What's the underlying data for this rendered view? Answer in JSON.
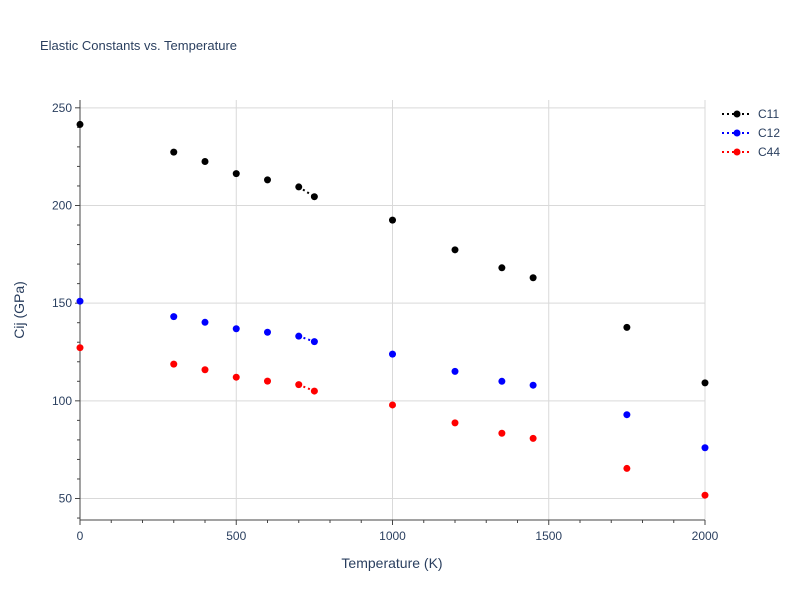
{
  "chart_data": {
    "type": "scatter",
    "title": "Elastic Constants vs. Temperature",
    "xlabel": "Temperature (K)",
    "ylabel": "Cij (GPa)",
    "xlim": [
      0,
      2000
    ],
    "ylim": [
      39,
      254
    ],
    "xticks": [
      0,
      500,
      1000,
      1500,
      2000
    ],
    "yticks": [
      50,
      100,
      150,
      200,
      250
    ],
    "xtick_labels": [
      "0",
      "500",
      "1000",
      "1500",
      "2000"
    ],
    "ytick_labels": [
      "50",
      "100",
      "150",
      "200",
      "250"
    ],
    "grid": true,
    "legend": "top-right",
    "series": [
      {
        "name": "C11",
        "color": "#000000",
        "x": [
          0,
          300,
          400,
          500,
          600,
          700,
          750,
          1000,
          1200,
          1350,
          1450,
          1750,
          2000
        ],
        "y": [
          241.5,
          227.3,
          222.5,
          216.3,
          213.1,
          209.5,
          204.5,
          192.5,
          177.3,
          168.1,
          163.0,
          137.6,
          109.2
        ],
        "segments": [
          [
            5,
            6
          ]
        ]
      },
      {
        "name": "C12",
        "color": "#0000ff",
        "x": [
          0,
          300,
          400,
          500,
          600,
          700,
          750,
          1000,
          1200,
          1350,
          1450,
          1750,
          2000
        ],
        "y": [
          151.0,
          143.1,
          140.2,
          136.9,
          135.1,
          133.1,
          130.3,
          123.9,
          115.1,
          110.0,
          108.0,
          92.9,
          76.0
        ],
        "segments": [
          [
            5,
            6
          ]
        ]
      },
      {
        "name": "C44",
        "color": "#ff0000",
        "x": [
          0,
          300,
          400,
          500,
          600,
          700,
          750,
          1000,
          1200,
          1350,
          1450,
          1750,
          2000
        ],
        "y": [
          127.2,
          118.8,
          115.9,
          112.1,
          110.1,
          108.3,
          105.0,
          97.9,
          88.7,
          83.4,
          80.8,
          65.4,
          51.7
        ],
        "segments": [
          [
            5,
            6
          ]
        ]
      }
    ]
  }
}
